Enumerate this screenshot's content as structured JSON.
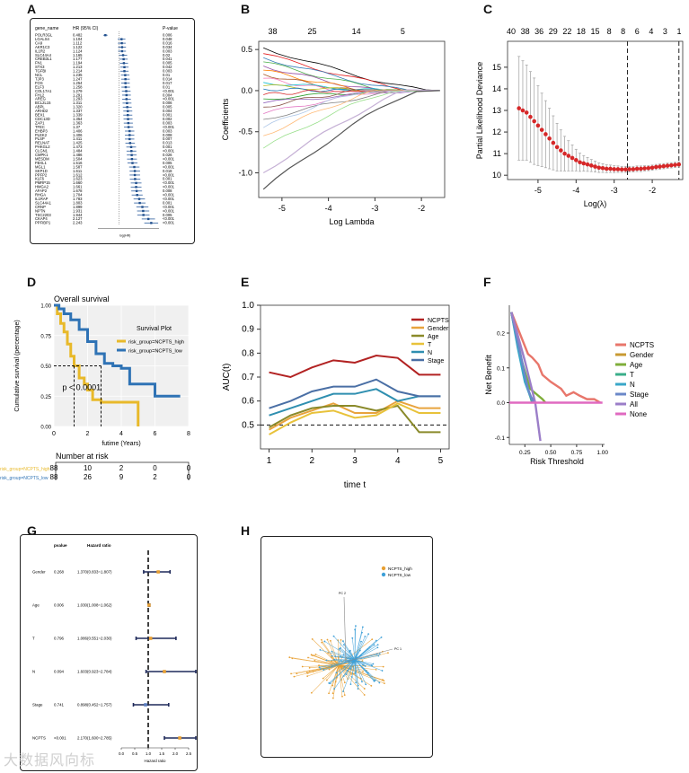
{
  "panels": {
    "A": "A",
    "B": "B",
    "C": "C",
    "D": "D",
    "E": "E",
    "F": "F",
    "G": "G",
    "H": "H"
  },
  "watermark": "大数据风向标",
  "chart_data": [
    {
      "panel": "A",
      "type": "forest",
      "headers": {
        "gene": "gene_name",
        "hr": "HR (95% CI)",
        "p": "P-value"
      },
      "rows": [
        {
          "gene": "POLR3GL",
          "hr": "0.482",
          "p": "0.006",
          "est": 0.48
        },
        {
          "gene": "LGALS4",
          "hr": "1.104",
          "p": "0.048",
          "est": 1.1
        },
        {
          "gene": "CA9",
          "hr": "1.112",
          "p": "0.016",
          "est": 1.11
        },
        {
          "gene": "AKR1C3",
          "hr": "1.122",
          "p": "0.034",
          "est": 1.12
        },
        {
          "gene": "IL1R2",
          "hr": "1.124",
          "p": "0.003",
          "est": 1.12
        },
        {
          "gene": "SLC44A4",
          "hr": "1.165",
          "p": "0.02",
          "est": 1.16
        },
        {
          "gene": "CREB3L1",
          "hr": "1.177",
          "p": "0.041",
          "est": 1.18
        },
        {
          "gene": "FN1",
          "hr": "1.194",
          "p": "0.005",
          "est": 1.19
        },
        {
          "gene": "STX3",
          "hr": "1.213",
          "p": "0.042",
          "est": 1.21
        },
        {
          "gene": "TGFBI",
          "hr": "1.214",
          "p": "0.003",
          "est": 1.21
        },
        {
          "gene": "NCL",
          "hr": "1.235",
          "p": "0.01",
          "est": 1.24
        },
        {
          "gene": "TJP3",
          "hr": "1.247",
          "p": "0.014",
          "est": 1.25
        },
        {
          "gene": "FOS",
          "hr": "1.254",
          "p": "0.017",
          "est": 1.25
        },
        {
          "gene": "ELF3",
          "hr": "1.258",
          "p": "0.01",
          "est": 1.26
        },
        {
          "gene": "COL17A1",
          "hr": "1.279",
          "p": "<0.001",
          "est": 1.28
        },
        {
          "gene": "FHL2",
          "hr": "1.291",
          "p": "0.004",
          "est": 1.29
        },
        {
          "gene": "AREG",
          "hr": "1.293",
          "p": "<0.001",
          "est": 1.29
        },
        {
          "gene": "BCL2L15",
          "hr": "1.311",
          "p": "0.006",
          "est": 1.31
        },
        {
          "gene": "ABPL",
          "hr": "1.320",
          "p": "0.005",
          "est": 1.32
        },
        {
          "gene": "ARHD2",
          "hr": "1.337",
          "p": "0.004",
          "est": 1.34
        },
        {
          "gene": "BEX1",
          "hr": "1.339",
          "p": "0.001",
          "est": 1.34
        },
        {
          "gene": "CDC13D",
          "hr": "1.354",
          "p": "0.002",
          "est": 1.35
        },
        {
          "gene": "ZAP1",
          "hr": "1.363",
          "p": "0.003",
          "est": 1.36
        },
        {
          "gene": "TFEC",
          "hr": "1.37",
          "p": "<0.001",
          "est": 1.37
        },
        {
          "gene": "EHBP3",
          "hr": "1.406",
          "p": "0.003",
          "est": 1.41
        },
        {
          "gene": "PLEK2",
          "hr": "1.406",
          "p": "0.008",
          "est": 1.41
        },
        {
          "gene": "PLSP",
          "hr": "1.411",
          "p": "0.007",
          "est": 1.41
        },
        {
          "gene": "RELNAT",
          "hr": "1.425",
          "p": "0.013",
          "est": 1.43
        },
        {
          "gene": "PHKGL2",
          "hr": "1.473",
          "p": "0.001",
          "est": 1.47
        },
        {
          "gene": "CLGN1",
          "hr": "1.484",
          "p": "<0.001",
          "est": 1.48
        },
        {
          "gene": "CMPK1",
          "hr": "1.486",
          "p": "0.026",
          "est": 1.49
        },
        {
          "gene": "MESDM",
          "hr": "1.504",
          "p": "<0.001",
          "est": 1.5
        },
        {
          "gene": "FBXL1",
          "hr": "1.516",
          "p": "0.005",
          "est": 1.52
        },
        {
          "gene": "MGL1",
          "hr": "1.587",
          "p": "<0.001",
          "est": 1.59
        },
        {
          "gene": "SKP1D",
          "hr": "1.611",
          "p": "0.018",
          "est": 1.61
        },
        {
          "gene": "PPFP2",
          "hr": "1.612",
          "p": "<0.001",
          "est": 1.61
        },
        {
          "gene": "KLF6",
          "hr": "1.623",
          "p": "0.001",
          "est": 1.62
        },
        {
          "gene": "PMRP15",
          "hr": "1.660",
          "p": "<0.001",
          "est": 1.66
        },
        {
          "gene": "HMGA2",
          "hr": "1.661",
          "p": "<0.001",
          "est": 1.66
        },
        {
          "gene": "AFAP2",
          "hr": "1.678",
          "p": "0.008",
          "est": 1.68
        },
        {
          "gene": "RHGA",
          "hr": "1.704",
          "p": "<0.001",
          "est": 1.7
        },
        {
          "gene": "IL1RAP",
          "hr": "1.783",
          "p": "<0.001",
          "est": 1.78
        },
        {
          "gene": "SLC44A1",
          "hr": "1.803",
          "p": "0.001",
          "est": 1.8
        },
        {
          "gene": "CRNP",
          "hr": "1.899",
          "p": "<0.001",
          "est": 1.9
        },
        {
          "gene": "NPTN",
          "hr": "1.931",
          "p": "<0.001",
          "est": 1.93
        },
        {
          "gene": "TSC2203",
          "hr": "1.944",
          "p": "0.005",
          "est": 1.94
        },
        {
          "gene": "CKAP4",
          "hr": "2.127",
          "p": "<0.001",
          "est": 2.13
        },
        {
          "gene": "PPFIBP1",
          "hr": "2.243",
          "p": "<0.001",
          "est": 2.24
        }
      ],
      "xlabel": "log(HR)"
    },
    {
      "panel": "B",
      "type": "line",
      "xlabel": "Log Lambda",
      "ylabel": "Coefficients",
      "xlim": [
        -5.5,
        -1.5
      ],
      "ylim": [
        -1.3,
        0.6
      ],
      "xticks": [
        "-5",
        "-4",
        "-3",
        "-2"
      ],
      "yticks": [
        "-1.0",
        "-0.5",
        "0.0",
        "0.5"
      ],
      "top_ticks": [
        "38",
        "25",
        "14",
        "5"
      ]
    },
    {
      "panel": "C",
      "type": "scatter",
      "xlabel": "Log(λ)",
      "ylabel": "Partial Likelihood Deviance",
      "xlim": [
        -5.8,
        -1.2
      ],
      "ylim": [
        9.8,
        16.2
      ],
      "xticks": [
        "-5",
        "-4",
        "-3",
        "-2"
      ],
      "yticks": [
        "10",
        "11",
        "12",
        "13",
        "14",
        "15"
      ],
      "top_ticks": [
        "40",
        "38",
        "36",
        "29",
        "22",
        "18",
        "15",
        "8",
        "8",
        "6",
        "4",
        "3",
        "1"
      ],
      "vlines": [
        -2.65,
        -1.3
      ],
      "x": [
        -5.5,
        -5.4,
        -5.3,
        -5.2,
        -5.1,
        -5.0,
        -4.9,
        -4.8,
        -4.7,
        -4.6,
        -4.5,
        -4.4,
        -4.3,
        -4.2,
        -4.1,
        -4.0,
        -3.9,
        -3.8,
        -3.7,
        -3.6,
        -3.5,
        -3.4,
        -3.3,
        -3.2,
        -3.1,
        -3.0,
        -2.9,
        -2.8,
        -2.7,
        -2.6,
        -2.5,
        -2.4,
        -2.3,
        -2.2,
        -2.1,
        -2.0,
        -1.9,
        -1.8,
        -1.7,
        -1.6,
        -1.5,
        -1.4,
        -1.3
      ],
      "y": [
        13.1,
        13.0,
        12.9,
        12.7,
        12.5,
        12.3,
        12.1,
        11.9,
        11.7,
        11.5,
        11.3,
        11.15,
        11.0,
        10.9,
        10.8,
        10.7,
        10.6,
        10.55,
        10.5,
        10.45,
        10.4,
        10.35,
        10.33,
        10.3,
        10.3,
        10.28,
        10.28,
        10.27,
        10.27,
        10.28,
        10.28,
        10.3,
        10.3,
        10.32,
        10.33,
        10.35,
        10.38,
        10.4,
        10.42,
        10.44,
        10.46,
        10.48,
        10.5
      ],
      "err": [
        2.4,
        2.3,
        2.2,
        2.1,
        2.0,
        1.85,
        1.7,
        1.55,
        1.4,
        1.25,
        1.1,
        0.95,
        0.8,
        0.7,
        0.6,
        0.5,
        0.42,
        0.36,
        0.32,
        0.28,
        0.25,
        0.22,
        0.2,
        0.18,
        0.17,
        0.16,
        0.15,
        0.14,
        0.14,
        0.13,
        0.13,
        0.13,
        0.13,
        0.12,
        0.12,
        0.12,
        0.12,
        0.12,
        0.12,
        0.12,
        0.12,
        0.12,
        0.12
      ]
    },
    {
      "panel": "D",
      "type": "line",
      "title": "Overall survival",
      "legend_title": "Survival Plot",
      "xlabel": "futime (Years)",
      "ylabel": "Cumulative survival (percentage)",
      "xlim": [
        0,
        8
      ],
      "ylim": [
        0,
        1
      ],
      "xticks": [
        "0",
        "2",
        "4",
        "6",
        "8"
      ],
      "yticks": [
        "0.00",
        "0.25",
        "0.50",
        "0.75",
        "1.00"
      ],
      "pvalue_text": "p < 0.0001",
      "series": [
        {
          "name": "risk_group=NCPTS_high",
          "color": "#e8b92a",
          "x": [
            0,
            0.2,
            0.4,
            0.6,
            0.8,
            1.0,
            1.2,
            1.5,
            1.8,
            2.0,
            2.3,
            2.8,
            3.5,
            4.2,
            4.8,
            5.0,
            5.0
          ],
          "y": [
            1.0,
            0.93,
            0.85,
            0.78,
            0.68,
            0.58,
            0.5,
            0.4,
            0.35,
            0.3,
            0.22,
            0.2,
            0.2,
            0.2,
            0.2,
            0.2,
            0.0
          ]
        },
        {
          "name": "risk_group=NCPTS_low",
          "color": "#2f73b5",
          "x": [
            0,
            0.3,
            0.6,
            1.0,
            1.5,
            2.0,
            2.5,
            3.0,
            3.5,
            4.0,
            4.5,
            5.0,
            6.0,
            7.5
          ],
          "y": [
            1.0,
            0.97,
            0.93,
            0.88,
            0.8,
            0.7,
            0.6,
            0.52,
            0.5,
            0.48,
            0.35,
            0.35,
            0.25,
            0.25
          ]
        }
      ],
      "risk_table": {
        "title": "Number at risk",
        "rows": [
          {
            "label": "risk_group=NCPTS_high",
            "values": [
              "88",
              "10",
              "2",
              "0",
              "0"
            ],
            "color": "#e8b92a"
          },
          {
            "label": "risk_group=NCPTS_low",
            "values": [
              "88",
              "26",
              "9",
              "2",
              "0"
            ],
            "color": "#2f73b5"
          }
        ]
      }
    },
    {
      "panel": "E",
      "type": "line",
      "xlabel": "time t",
      "ylabel": "AUC(t)",
      "xlim": [
        0.8,
        5.2
      ],
      "ylim": [
        0.4,
        1.0
      ],
      "xticks": [
        "1",
        "2",
        "3",
        "4",
        "5"
      ],
      "yticks": [
        "0.5",
        "0.6",
        "0.7",
        "0.8",
        "0.9",
        "1.0"
      ],
      "x": [
        1,
        1.5,
        2,
        2.5,
        3,
        3.5,
        4,
        4.5,
        5
      ],
      "series": [
        {
          "name": "NCPTS",
          "color": "#b22222",
          "values": [
            0.72,
            0.7,
            0.74,
            0.77,
            0.76,
            0.79,
            0.78,
            0.71,
            0.71
          ]
        },
        {
          "name": "Gender",
          "color": "#e8a33d",
          "values": [
            0.48,
            0.53,
            0.56,
            0.59,
            0.55,
            0.55,
            0.6,
            0.57,
            0.57
          ]
        },
        {
          "name": "Age",
          "color": "#8a8a2a",
          "values": [
            0.49,
            0.54,
            0.57,
            0.58,
            0.58,
            0.56,
            0.58,
            0.47,
            0.47
          ]
        },
        {
          "name": "T",
          "color": "#e8c23a",
          "values": [
            0.46,
            0.51,
            0.55,
            0.56,
            0.53,
            0.54,
            0.59,
            0.55,
            0.55
          ]
        },
        {
          "name": "N",
          "color": "#2f8fb0",
          "values": [
            0.54,
            0.57,
            0.6,
            0.63,
            0.63,
            0.65,
            0.6,
            0.62,
            0.62
          ]
        },
        {
          "name": "Stage",
          "color": "#4a6fa5",
          "values": [
            0.57,
            0.6,
            0.64,
            0.66,
            0.66,
            0.69,
            0.64,
            0.62,
            0.62
          ]
        }
      ],
      "hline": 0.5
    },
    {
      "panel": "F",
      "type": "line",
      "xlabel": "Risk Threshold",
      "ylabel": "Net Benefit",
      "xlim": [
        0.1,
        1.02
      ],
      "ylim": [
        -0.12,
        0.28
      ],
      "xticks": [
        "0.25",
        "0.50",
        "0.75",
        "1.00"
      ],
      "yticks": [
        "-0.1",
        "0.0",
        "0.1",
        "0.2"
      ],
      "series": [
        {
          "name": "NCPTS",
          "color": "#e8766b",
          "x": [
            0.12,
            0.2,
            0.28,
            0.32,
            0.38,
            0.42,
            0.5,
            0.55,
            0.6,
            0.65,
            0.72,
            0.78,
            0.85,
            0.92,
            0.98
          ],
          "y": [
            0.26,
            0.2,
            0.14,
            0.13,
            0.11,
            0.08,
            0.06,
            0.05,
            0.04,
            0.02,
            0.03,
            0.02,
            0.01,
            0.01,
            0.0
          ]
        },
        {
          "name": "Gender",
          "color": "#c89a32",
          "x": [
            0.12,
            0.2,
            0.25,
            0.3,
            0.33
          ],
          "y": [
            0.26,
            0.15,
            0.07,
            0.02,
            0.0
          ]
        },
        {
          "name": "Age",
          "color": "#7fae3a",
          "x": [
            0.12,
            0.2,
            0.3,
            0.38,
            0.42,
            0.45
          ],
          "y": [
            0.26,
            0.14,
            0.04,
            0.02,
            0.01,
            0.0
          ]
        },
        {
          "name": "T",
          "color": "#3aae8a",
          "x": [
            0.12,
            0.2,
            0.27,
            0.32
          ],
          "y": [
            0.26,
            0.14,
            0.05,
            0.0
          ]
        },
        {
          "name": "N",
          "color": "#3aa7c8",
          "x": [
            0.12,
            0.18,
            0.25,
            0.3,
            0.35
          ],
          "y": [
            0.26,
            0.16,
            0.06,
            0.02,
            0.0
          ]
        },
        {
          "name": "Stage",
          "color": "#6b88c8",
          "x": [
            0.12,
            0.2,
            0.28,
            0.33
          ],
          "y": [
            0.26,
            0.15,
            0.04,
            0.0
          ]
        },
        {
          "name": "All",
          "color": "#9b7ec8",
          "x": [
            0.12,
            0.25,
            0.35,
            0.4
          ],
          "y": [
            0.26,
            0.12,
            0.0,
            -0.11
          ]
        },
        {
          "name": "None",
          "color": "#e06ac0",
          "x": [
            0.1,
            1.0
          ],
          "y": [
            0.0,
            0.0
          ]
        }
      ]
    },
    {
      "panel": "G",
      "type": "forest",
      "headers": {
        "pvalue": "pvalue",
        "hr": "Hazard ratio"
      },
      "xlabel": "Hazard ratio",
      "xlim": [
        0,
        2.5
      ],
      "xticks": [
        "0.0",
        "0.5",
        "1.0",
        "1.5",
        "2.0",
        "2.5"
      ],
      "rows": [
        {
          "label": "Gender",
          "p": "0.268",
          "hr": "1.370(0.833~1.807)",
          "est": 1.37,
          "lo": 0.83,
          "hi": 1.81
        },
        {
          "label": "Age",
          "p": "0.006",
          "hr": "1.030(1.008~1.062)",
          "est": 1.03,
          "lo": 1.01,
          "hi": 1.06
        },
        {
          "label": "T",
          "p": "0.796",
          "hr": "1.086(0.551~2.030)",
          "est": 1.09,
          "lo": 0.55,
          "hi": 2.03
        },
        {
          "label": "N",
          "p": "0.094",
          "hr": "1.603(0.923~2.784)",
          "est": 1.6,
          "lo": 0.92,
          "hi": 2.78
        },
        {
          "label": "Stage",
          "p": "0.741",
          "hr": "0.898(0.452~1.757)",
          "est": 0.9,
          "lo": 0.45,
          "hi": 1.76
        },
        {
          "label": "NCPTS",
          "p": "<0.001",
          "hr": "2.170(1.600~2.785)",
          "est": 2.17,
          "lo": 1.6,
          "hi": 2.79
        }
      ]
    },
    {
      "panel": "H",
      "type": "scatter",
      "legend": [
        {
          "name": "NCPTS_high",
          "color": "#e8a033"
        },
        {
          "name": "NCPTS_low",
          "color": "#3ea0d8"
        }
      ],
      "axis_labels": [
        "PC 2",
        "PC 1"
      ]
    }
  ]
}
